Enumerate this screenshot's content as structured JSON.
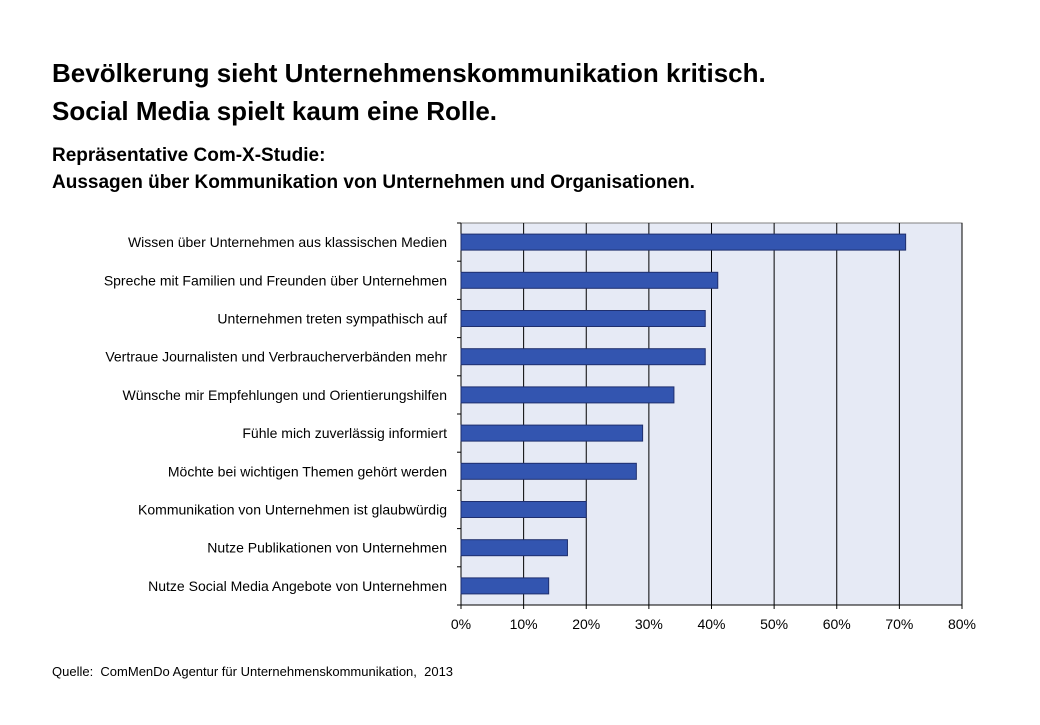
{
  "heading": {
    "line1": "Bevölkerung sieht Unternehmenskommunikation kritisch.",
    "line2": "Social Media spielt kaum eine Rolle."
  },
  "subheading": {
    "line1": "Repräsentative Com-X-Studie:",
    "line2": "Aussagen über Kommunikation von Unternehmen und Organisationen."
  },
  "source": "Quelle:  ComMenDo Agentur für Unternehmenskommunikation,  2013",
  "colors": {
    "bar": "#3355b0",
    "bar_stroke": "#1f2f6e",
    "plot_bg": "#e6eaf5",
    "gridline": "#000000"
  },
  "chart_data": {
    "type": "bar",
    "orientation": "horizontal",
    "categories": [
      "Wissen über Unternehmen aus klassischen Medien",
      "Spreche mit Familien und Freunden über Unternehmen",
      "Unternehmen treten sympathisch auf",
      "Vertraue Journalisten und Verbraucherverbänden mehr",
      "Wünsche mir Empfehlungen und Orientierungshilfen",
      "Fühle mich zuverlässig informiert",
      "Möchte bei wichtigen Themen gehört werden",
      "Kommunikation von Unternehmen ist glaubwürdig",
      "Nutze Publikationen von Unternehmen",
      "Nutze Social Media Angebote von Unternehmen"
    ],
    "values": [
      71,
      41,
      39,
      39,
      34,
      29,
      28,
      20,
      17,
      14
    ],
    "xlim": [
      0,
      80
    ],
    "xticks": [
      0,
      10,
      20,
      30,
      40,
      50,
      60,
      70,
      80
    ],
    "xtick_labels": [
      "0%",
      "10%",
      "20%",
      "30%",
      "40%",
      "50%",
      "60%",
      "70%",
      "80%"
    ],
    "unit": "%",
    "grid": "vertical",
    "legend": "none"
  }
}
